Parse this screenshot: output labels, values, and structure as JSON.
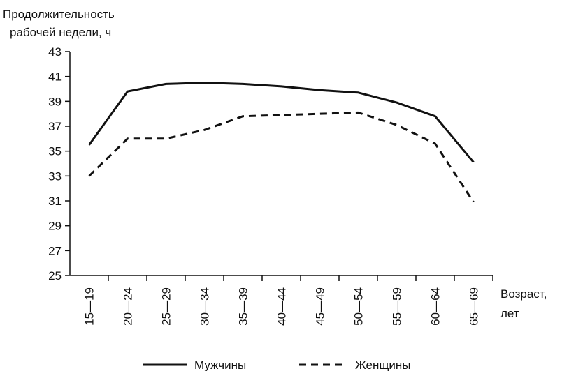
{
  "chart_data": {
    "type": "line",
    "ylabel_lines": [
      "Продолжительность",
      "рабочей недели, ч"
    ],
    "xlabel_lines": [
      "Возраст,",
      "лет"
    ],
    "categories": [
      "15—19",
      "20—24",
      "25—29",
      "30—34",
      "35—39",
      "40—44",
      "45—49",
      "50—54",
      "55—59",
      "60—64",
      "65—69"
    ],
    "ylim": [
      25,
      43
    ],
    "yticks": [
      25,
      27,
      29,
      31,
      33,
      35,
      37,
      39,
      41,
      43
    ],
    "grid": false,
    "legend_placement": "bottom",
    "series": [
      {
        "name": "Мужчины",
        "style": "solid",
        "color": "#111111",
        "values": [
          35.5,
          39.8,
          40.4,
          40.5,
          40.4,
          40.2,
          39.9,
          39.7,
          38.9,
          37.8,
          34.1
        ]
      },
      {
        "name": "Женщины",
        "style": "dashed",
        "color": "#111111",
        "values": [
          33.0,
          36.0,
          36.0,
          36.7,
          37.8,
          37.9,
          38.0,
          38.1,
          37.1,
          35.6,
          30.9
        ]
      }
    ]
  }
}
